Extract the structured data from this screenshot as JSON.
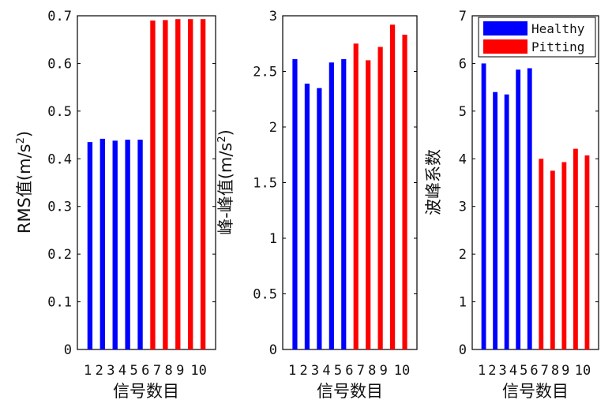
{
  "colors": {
    "healthy": "#0000ff",
    "pitting": "#ff0000",
    "axis": "#000000"
  },
  "legend": {
    "placement": "top-right of third chart",
    "entries": [
      "Healthy",
      "Pitting"
    ]
  },
  "chart_data": [
    {
      "type": "bar",
      "xlabel": "信号数目",
      "ylabel_main": "RMS值",
      "ylabel_unit": "(m/s",
      "ylabel_sup": "2",
      "ylabel_close": ")",
      "ylim": [
        0,
        0.7
      ],
      "yticks": [
        "0",
        "0.1",
        "0.2",
        "0.3",
        "0.4",
        "0.5",
        "0.6",
        "0.7"
      ],
      "categories": [
        "1",
        "2",
        "3",
        "4",
        "5",
        "6",
        "7",
        "8",
        "9",
        "10"
      ],
      "series": [
        {
          "name": "Healthy",
          "x": [
            1,
            2,
            3,
            4,
            5
          ],
          "values": [
            0.435,
            0.442,
            0.438,
            0.44,
            0.44
          ]
        },
        {
          "name": "Pitting",
          "x": [
            6,
            7,
            8,
            9,
            10
          ],
          "values": [
            0.69,
            0.691,
            0.693,
            0.693,
            0.693
          ]
        }
      ]
    },
    {
      "type": "bar",
      "xlabel": "信号数目",
      "ylabel_main": "峰-峰值",
      "ylabel_unit": "(m/s",
      "ylabel_sup": "2",
      "ylabel_close": ")",
      "ylim": [
        0,
        3
      ],
      "yticks": [
        "0",
        "0.5",
        "1",
        "1.5",
        "2",
        "2.5",
        "3"
      ],
      "categories": [
        "1",
        "2",
        "3",
        "4",
        "5",
        "6",
        "7",
        "8",
        "9",
        "10"
      ],
      "series": [
        {
          "name": "Healthy",
          "x": [
            1,
            2,
            3,
            4,
            5
          ],
          "values": [
            2.61,
            2.39,
            2.35,
            2.58,
            2.61
          ]
        },
        {
          "name": "Pitting",
          "x": [
            6,
            7,
            8,
            9,
            10
          ],
          "values": [
            2.75,
            2.6,
            2.72,
            2.92,
            2.83
          ]
        }
      ]
    },
    {
      "type": "bar",
      "xlabel": "信号数目",
      "ylabel_main": "波峰系数",
      "ylim": [
        0,
        7
      ],
      "yticks": [
        "0",
        "1",
        "2",
        "3",
        "4",
        "5",
        "6",
        "7"
      ],
      "categories": [
        "1",
        "2",
        "3",
        "4",
        "5",
        "6",
        "7",
        "8",
        "9",
        "10"
      ],
      "series": [
        {
          "name": "Healthy",
          "x": [
            1,
            2,
            3,
            4,
            5
          ],
          "values": [
            6.0,
            5.4,
            5.35,
            5.87,
            5.9
          ]
        },
        {
          "name": "Pitting",
          "x": [
            6,
            7,
            8,
            9,
            10
          ],
          "values": [
            4.0,
            3.75,
            3.93,
            4.21,
            4.07
          ]
        }
      ]
    }
  ]
}
